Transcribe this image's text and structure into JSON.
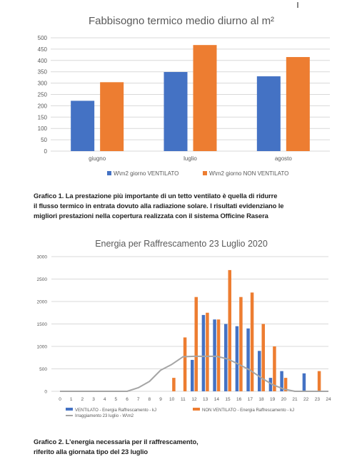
{
  "colors": {
    "ventilato": "#4472C4",
    "non_ventilato": "#ED7D31",
    "irraggiamento": "#A5A5A5",
    "grid": "#D9D9D9",
    "axis_text": "#595959"
  },
  "captions": {
    "c1_line1": "Grafico 1. La prestazione più importante di un tetto ventilato è quella di ridurre",
    "c1_line2": "il flusso termico in entrata dovuto alla radiazione solare. I risultati evidenziano le",
    "c1_line3": "migliori prestazioni nella copertura realizzata con il sistema Officine Rasera",
    "c2_line1": "Grafico 2. L’energia necessaria per il raffrescamento,",
    "c2_line2": "riferito alla giornata tipo del 23 luglio"
  },
  "chart_data": [
    {
      "type": "bar",
      "title": "Fabbisogno termico medio diurno al m²",
      "categories": [
        "giugno",
        "luglio",
        "agosto"
      ],
      "series": [
        {
          "name": "W\\m2 giorno VENTILATO",
          "values": [
            222,
            349,
            330
          ]
        },
        {
          "name": "W\\m2 giorno NON VENTILATO",
          "values": [
            304,
            468,
            415
          ]
        }
      ],
      "ylim": [
        0,
        500
      ],
      "yticks": [
        0,
        50,
        100,
        150,
        200,
        250,
        300,
        350,
        400,
        450,
        500
      ],
      "grid": true,
      "legend": "bottom"
    },
    {
      "type": "bar",
      "title": "Energia per Raffrescamento 23 Luglio 2020",
      "x": [
        0,
        1,
        2,
        3,
        4,
        5,
        6,
        7,
        8,
        9,
        10,
        11,
        12,
        13,
        14,
        15,
        16,
        17,
        18,
        19,
        20,
        21,
        22,
        23,
        24
      ],
      "series": [
        {
          "name": "VENTILATO - Energia Raffrescamento - kJ",
          "type": "bar",
          "values": [
            0,
            0,
            0,
            0,
            0,
            0,
            0,
            0,
            0,
            0,
            0,
            0,
            700,
            1700,
            1600,
            1500,
            1450,
            1400,
            900,
            300,
            450,
            0,
            400,
            0,
            0
          ]
        },
        {
          "name": "NON VENTILATO - Energia Raffrescamento - kJ",
          "type": "bar",
          "values": [
            0,
            0,
            0,
            0,
            0,
            0,
            0,
            0,
            0,
            0,
            300,
            1200,
            2100,
            1750,
            1600,
            2700,
            2100,
            2200,
            1500,
            1000,
            300,
            0,
            0,
            450,
            0
          ]
        },
        {
          "name": "Irraggiamento 23 luglio - W\\m2",
          "type": "line",
          "values": [
            0,
            0,
            0,
            0,
            0,
            0,
            0,
            80,
            220,
            470,
            600,
            770,
            780,
            780,
            780,
            720,
            600,
            470,
            300,
            150,
            50,
            0,
            0,
            0,
            0
          ]
        }
      ],
      "ylim": [
        0,
        3000
      ],
      "yticks": [
        0,
        500,
        1000,
        1500,
        2000,
        2500,
        3000
      ],
      "grid": true,
      "legend": "bottom"
    }
  ]
}
